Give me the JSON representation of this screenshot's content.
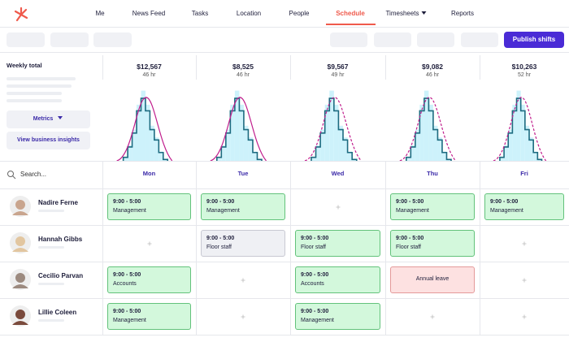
{
  "nav": {
    "items": [
      "Me",
      "News Feed",
      "Tasks",
      "Location",
      "People",
      "Schedule",
      "Timesheets",
      "Reports"
    ]
  },
  "toolbar": {
    "publish_button": "Publish shifts"
  },
  "summary": {
    "label": "Weekly total",
    "metrics_button": "Metrics",
    "insights_button": "View business insights",
    "days": [
      {
        "total": "$12,567",
        "hours": "46 hr"
      },
      {
        "total": "$8,525",
        "hours": "46 hr"
      },
      {
        "total": "$9,567",
        "hours": "49 hr"
      },
      {
        "total": "$9,082",
        "hours": "46 hr"
      },
      {
        "total": "$10,263",
        "hours": "52 hr"
      }
    ]
  },
  "schedule": {
    "search_placeholder": "Search...",
    "days": [
      "Mon",
      "Tue",
      "Wed",
      "Thu",
      "Fri"
    ],
    "employees": [
      {
        "name": "Nadire Ferne",
        "shifts": [
          {
            "time": "9:00 - 5:00",
            "role": "Management",
            "style": "confirmed"
          },
          {
            "time": "9:00 - 5:00",
            "role": "Management",
            "style": "confirmed"
          },
          null,
          {
            "time": "9:00 - 5:00",
            "role": "Management",
            "style": "confirmed"
          },
          {
            "time": "9:00 - 5:00",
            "role": "Management",
            "style": "confirmed"
          }
        ]
      },
      {
        "name": "Hannah Gibbs",
        "shifts": [
          null,
          {
            "time": "9:00 - 5:00",
            "role": "Floor staff",
            "style": "unpublished"
          },
          {
            "time": "9:00 - 5:00",
            "role": "Floor staff",
            "style": "confirmed"
          },
          {
            "time": "9:00 - 5:00",
            "role": "Floor staff",
            "style": "confirmed"
          },
          null
        ]
      },
      {
        "name": "Cecilio Parvan",
        "shifts": [
          {
            "time": "9:00 - 5:00",
            "role": "Accounts",
            "style": "confirmed"
          },
          null,
          {
            "time": "9:00 - 5:00",
            "role": "Accounts",
            "style": "confirmed"
          },
          {
            "role": "Annual leave",
            "style": "leave"
          },
          null
        ]
      },
      {
        "name": "Lillie Coleen",
        "shifts": [
          {
            "time": "9:00 - 5:00",
            "role": "Management",
            "style": "confirmed"
          },
          null,
          {
            "time": "9:00 - 5:00",
            "role": "Management",
            "style": "confirmed"
          },
          null,
          null
        ]
      }
    ]
  }
}
